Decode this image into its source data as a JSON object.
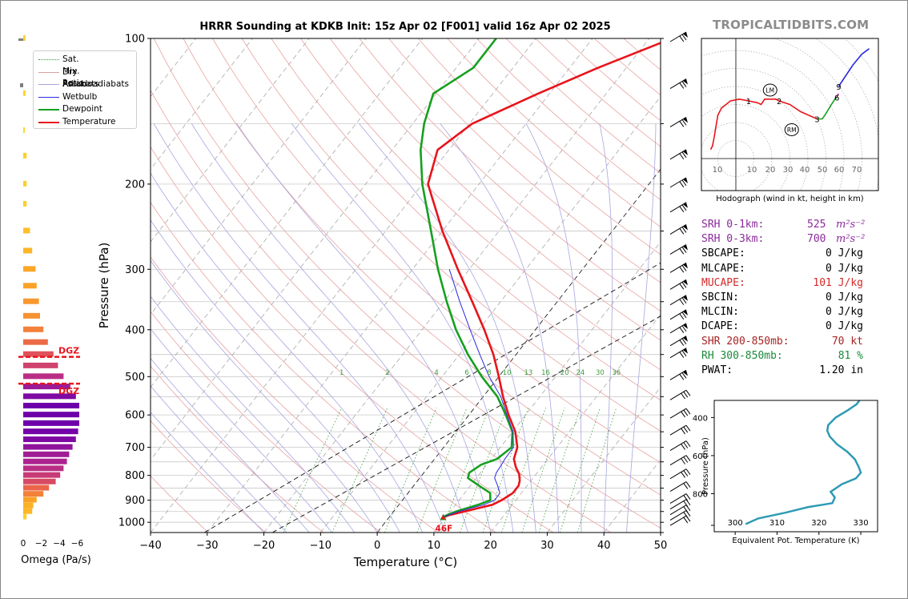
{
  "title": "HRRR Sounding at KDKB Init: 15z Apr 02 [F001] valid 16z Apr 02 2025",
  "brand": "TROPICALTIDBITS.COM",
  "chart_data": [
    {
      "type": "line",
      "name_of_plot": "skew-t",
      "xlabel": "Temperature (°C)",
      "ylabel": "Pressure (hPa)",
      "xlim": [
        -40,
        50
      ],
      "ylim": [
        1050,
        100
      ],
      "y_scale": "log",
      "x_ticks": [
        -40,
        -30,
        -20,
        -10,
        0,
        10,
        20,
        30,
        40,
        50
      ],
      "y_ticks": [
        100,
        200,
        300,
        400,
        500,
        600,
        700,
        800,
        900,
        1000
      ],
      "grid": true,
      "legend_position": "top-left",
      "legend": [
        "Sat. Mix. Ratio",
        "Dry Adiabats",
        "Pseudoadiabats",
        "Wetbulb",
        "Dewpoint",
        "Temperature"
      ],
      "mixing_ratio_labels": [
        "1",
        "2",
        "4",
        "6",
        "8",
        "10",
        "13",
        "16",
        "20",
        "24",
        "30",
        "36"
      ],
      "surface_label": "46F",
      "series": [
        {
          "name": "Temperature",
          "color": "#e8141b",
          "p": [
            975,
            965,
            950,
            920,
            900,
            870,
            840,
            820,
            795,
            770,
            740,
            700,
            650,
            600,
            550,
            500,
            450,
            400,
            350,
            300,
            250,
            200,
            170,
            150,
            130,
            115,
            100
          ],
          "t": [
            9.5,
            10.5,
            12.5,
            16.5,
            17.5,
            18.5,
            18.5,
            18.0,
            17.0,
            15.5,
            14.0,
            13.0,
            10.5,
            7.0,
            3.5,
            0.0,
            -4.0,
            -9.0,
            -15.0,
            -22.0,
            -30.0,
            -39.0,
            -42.0,
            -39.5,
            -32.0,
            -25.0,
            -16.0
          ]
        },
        {
          "name": "Dewpoint",
          "color": "#16a01e",
          "p": [
            975,
            965,
            950,
            920,
            900,
            870,
            840,
            810,
            790,
            760,
            740,
            700,
            650,
            600,
            550,
            500,
            450,
            400,
            350,
            300,
            250,
            200,
            170,
            150,
            130,
            115,
            100
          ],
          "t": [
            9.5,
            10.0,
            11.0,
            14.0,
            15.5,
            14.5,
            11.5,
            8.5,
            8.0,
            9.0,
            11.0,
            12.0,
            10.0,
            6.5,
            2.5,
            -3.0,
            -8.5,
            -14.0,
            -19.5,
            -25.5,
            -32.0,
            -40.0,
            -45.0,
            -48.0,
            -50.5,
            -47.0,
            -47.0
          ]
        },
        {
          "name": "Wetbulb",
          "color": "#2a2ae0",
          "p": [
            975,
            950,
            920,
            900,
            870,
            840,
            810,
            790,
            760,
            740,
            700,
            650,
            600,
            550,
            500,
            450,
            400,
            350,
            300
          ],
          "t": [
            9.5,
            11.5,
            15.0,
            16.3,
            16.2,
            14.8,
            13.2,
            12.8,
            12.6,
            12.4,
            12.3,
            10.1,
            6.7,
            3.1,
            -1.7,
            -6.4,
            -11.5,
            -17.2,
            -23.5
          ]
        }
      ],
      "wind_barbs": [
        {
          "p": 100
        },
        {
          "p": 125
        },
        {
          "p": 150
        },
        {
          "p": 175
        },
        {
          "p": 200
        },
        {
          "p": 225
        },
        {
          "p": 250
        },
        {
          "p": 275
        },
        {
          "p": 300
        },
        {
          "p": 325
        },
        {
          "p": 350
        },
        {
          "p": 375
        },
        {
          "p": 400
        },
        {
          "p": 425
        },
        {
          "p": 450
        },
        {
          "p": 500
        },
        {
          "p": 550
        },
        {
          "p": 600
        },
        {
          "p": 650
        },
        {
          "p": 700
        },
        {
          "p": 750
        },
        {
          "p": 800
        },
        {
          "p": 850
        },
        {
          "p": 900
        },
        {
          "p": 925
        },
        {
          "p": 950
        },
        {
          "p": 975
        },
        {
          "p": 1000
        }
      ]
    },
    {
      "type": "bar",
      "name_of_plot": "omega-profile",
      "xlabel": "Omega (Pa/s)",
      "x_ticks": [
        "0",
        "−2",
        "−4",
        "−6"
      ],
      "dgz_label": "DGZ",
      "dgz_top_hPa": 455,
      "dgz_bottom_hPa": 517,
      "levels": [
        {
          "p": 100,
          "omega": -0.4
        },
        {
          "p": 130,
          "omega": -0.4
        },
        {
          "p": 155,
          "omega": -0.2
        },
        {
          "p": 175,
          "omega": -0.6
        },
        {
          "p": 200,
          "omega": -0.6
        },
        {
          "p": 220,
          "omega": -0.6
        },
        {
          "p": 250,
          "omega": -1.2
        },
        {
          "p": 275,
          "omega": -1.6
        },
        {
          "p": 300,
          "omega": -2.2
        },
        {
          "p": 325,
          "omega": -2.4
        },
        {
          "p": 350,
          "omega": -2.8
        },
        {
          "p": 375,
          "omega": -3.0
        },
        {
          "p": 400,
          "omega": -3.6
        },
        {
          "p": 425,
          "omega": -4.4
        },
        {
          "p": 450,
          "omega": -5.4
        },
        {
          "p": 475,
          "omega": -6.2
        },
        {
          "p": 500,
          "omega": -7.2
        },
        {
          "p": 525,
          "omega": -8.4
        },
        {
          "p": 550,
          "omega": -9.4
        },
        {
          "p": 575,
          "omega": -10.0
        },
        {
          "p": 600,
          "omega": -10.0
        },
        {
          "p": 625,
          "omega": -10.0
        },
        {
          "p": 650,
          "omega": -9.8
        },
        {
          "p": 675,
          "omega": -9.4
        },
        {
          "p": 700,
          "omega": -8.8
        },
        {
          "p": 725,
          "omega": -8.2
        },
        {
          "p": 750,
          "omega": -7.8
        },
        {
          "p": 775,
          "omega": -7.2
        },
        {
          "p": 800,
          "omega": -6.6
        },
        {
          "p": 825,
          "omega": -5.8
        },
        {
          "p": 850,
          "omega": -4.6
        },
        {
          "p": 875,
          "omega": -3.6
        },
        {
          "p": 900,
          "omega": -2.4
        },
        {
          "p": 925,
          "omega": -1.8
        },
        {
          "p": 950,
          "omega": -1.6
        },
        {
          "p": 975,
          "omega": -0.6
        }
      ]
    },
    {
      "type": "line",
      "name_of_plot": "hodograph",
      "xlabel": "Hodograph (wind in kt, height in km)",
      "ring_labels": [
        "10",
        "10",
        "20",
        "30",
        "40",
        "50",
        "60",
        "70"
      ],
      "height_labels": [
        {
          "label": "1",
          "u": 7,
          "v": 32
        },
        {
          "label": "2",
          "u": 24,
          "v": 32
        },
        {
          "label": "3",
          "u": 45,
          "v": 22
        },
        {
          "label": "6",
          "u": 56,
          "v": 34
        },
        {
          "label": "9",
          "u": 57,
          "v": 40
        }
      ],
      "storm_motion": [
        {
          "label": "LM",
          "u": 19,
          "v": 38
        },
        {
          "label": "RM",
          "u": 31,
          "v": 16
        }
      ],
      "series": [
        {
          "name": "0-1 km",
          "color": "#e8141b",
          "u": [
            -14,
            -13,
            -12,
            -10,
            -8,
            -3,
            2,
            7
          ],
          "v": [
            5,
            7,
            12,
            24,
            28,
            32,
            33,
            32
          ]
        },
        {
          "name": "1-3 km",
          "color": "#e8141b",
          "u": [
            7,
            12,
            14,
            16,
            18,
            22,
            24,
            30,
            36,
            45
          ],
          "v": [
            32,
            31,
            30,
            33,
            33,
            33,
            32,
            30,
            26,
            22
          ]
        },
        {
          "name": "3-6 km",
          "color": "#16a01e",
          "u": [
            45,
            48,
            50,
            53,
            55,
            56
          ],
          "v": [
            22,
            22,
            25,
            30,
            33,
            34
          ]
        },
        {
          "name": "6-9 km",
          "color": "#c71fc7",
          "u": [
            56,
            57
          ],
          "v": [
            34,
            36
          ]
        },
        {
          "name": "9+ km",
          "color": "#2a2ae0",
          "u": [
            57,
            61,
            65,
            70,
            74
          ],
          "v": [
            40,
            46,
            52,
            58,
            61
          ]
        }
      ]
    },
    {
      "type": "line",
      "name_of_plot": "theta-e-profile",
      "xlabel": "Equivalent Pot. Temperature (K)",
      "ylabel": "Pressure (hPa)",
      "xlim": [
        295,
        334
      ],
      "ylim": [
        1000,
        310
      ],
      "x_ticks": [
        "300",
        "310",
        "320",
        "330"
      ],
      "y_ticks": [
        "400",
        "600",
        "800"
      ],
      "series": [
        {
          "name": "theta-e",
          "color": "#2e9bb4",
          "p": [
            300,
            330,
            360,
            400,
            440,
            470,
            500,
            540,
            580,
            620,
            660,
            690,
            720,
            750,
            790,
            820,
            850,
            870,
            900,
            930,
            960
          ],
          "t": [
            330.0,
            329.0,
            327.0,
            324.0,
            322.2,
            322.0,
            322.6,
            324.3,
            326.8,
            328.6,
            329.5,
            330.0,
            328.8,
            325.5,
            322.8,
            323.8,
            323.2,
            317.5,
            312.0,
            305.5,
            302.5
          ]
        }
      ]
    }
  ],
  "params": [
    {
      "label": "SRH 0-1km:",
      "value": "525",
      "unit": "m²s⁻²",
      "color": "#8b2a9b"
    },
    {
      "label": "SRH 0-3km:",
      "value": "700",
      "unit": "m²s⁻²",
      "color": "#8b2a9b"
    },
    {
      "label": "SBCAPE:",
      "value": "0 J/kg",
      "unit": "",
      "color": "#000000"
    },
    {
      "label": "MLCAPE:",
      "value": "0 J/kg",
      "unit": "",
      "color": "#000000"
    },
    {
      "label": "MUCAPE:",
      "value": "101 J/kg",
      "unit": "",
      "color": "#d42a2a"
    },
    {
      "label": "SBCIN:",
      "value": "0 J/kg",
      "unit": "",
      "color": "#000000"
    },
    {
      "label": "MLCIN:",
      "value": "0 J/kg",
      "unit": "",
      "color": "#000000"
    },
    {
      "label": "DCAPE:",
      "value": "0 J/kg",
      "unit": "",
      "color": "#000000"
    },
    {
      "label": "SHR 200-850mb:",
      "value": "70 kt",
      "unit": "",
      "color": "#a62424"
    },
    {
      "label": "RH 300-850mb:",
      "value": "81 %",
      "unit": "",
      "color": "#1a8a3a"
    },
    {
      "label": "PWAT:",
      "value": "1.20 in",
      "unit": "",
      "color": "#000000"
    }
  ]
}
